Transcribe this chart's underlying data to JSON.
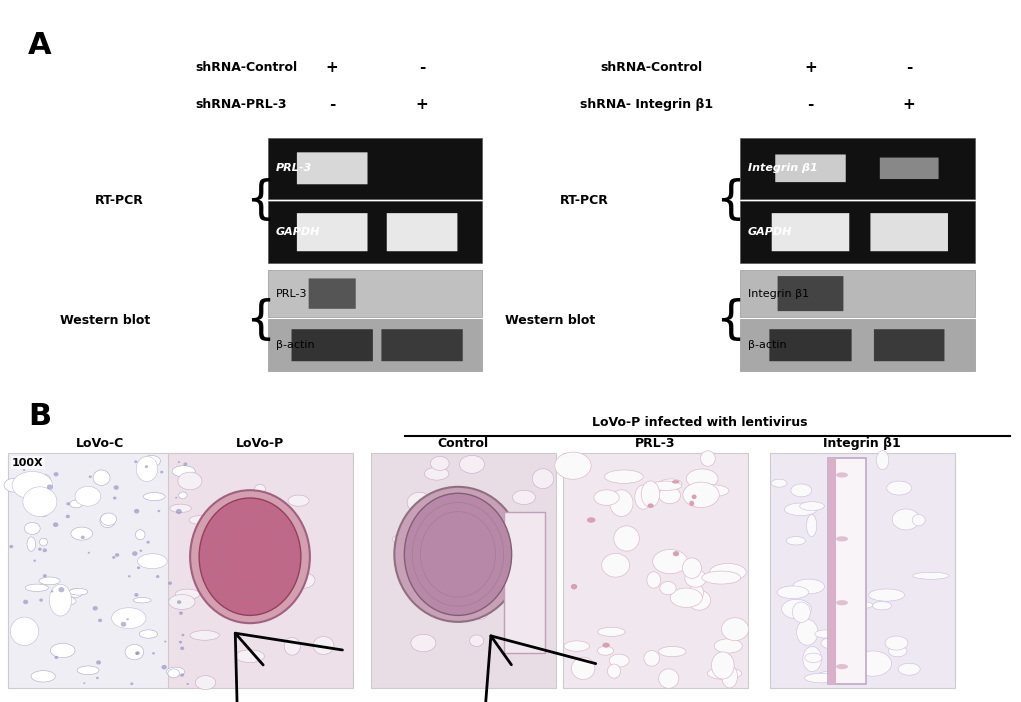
{
  "fig_width": 10.21,
  "fig_height": 7.02,
  "bg_color": "#ffffff",
  "panel_A_label": "A",
  "panel_B_label": "B",
  "left_panel": {
    "row1_label": "shRNA-Control",
    "row1_vals": [
      "+",
      "-"
    ],
    "row2_label": "shRNA-PRL-3",
    "row2_vals": [
      "-",
      "+"
    ],
    "rtpcr_label": "RT-PCR",
    "rtpcr_gene1": "PRL-3",
    "rtpcr_gene2": "GAPDH",
    "wb_label": "Western blot",
    "wb_gene1": "PRL-3",
    "wb_gene2": "β-actin"
  },
  "right_panel": {
    "row1_label": "shRNA-Control",
    "row1_vals": [
      "+",
      "-"
    ],
    "row2_label": "shRNA- Integrin β1",
    "row2_vals": [
      "-",
      "+"
    ],
    "rtpcr_label": "RT-PCR",
    "rtpcr_gene1": "Integrin β1",
    "rtpcr_gene2": "GAPDH",
    "wb_label": "Western blot",
    "wb_gene1": "Integrin β1",
    "wb_gene2": "β-actin"
  },
  "panel_B": {
    "group_label": "LoVo-P infected with lentivirus",
    "cols": [
      "LoVo-C",
      "LoVo-P",
      "Control",
      "PRL-3",
      "Integrin β1"
    ],
    "magnification": "100X"
  }
}
